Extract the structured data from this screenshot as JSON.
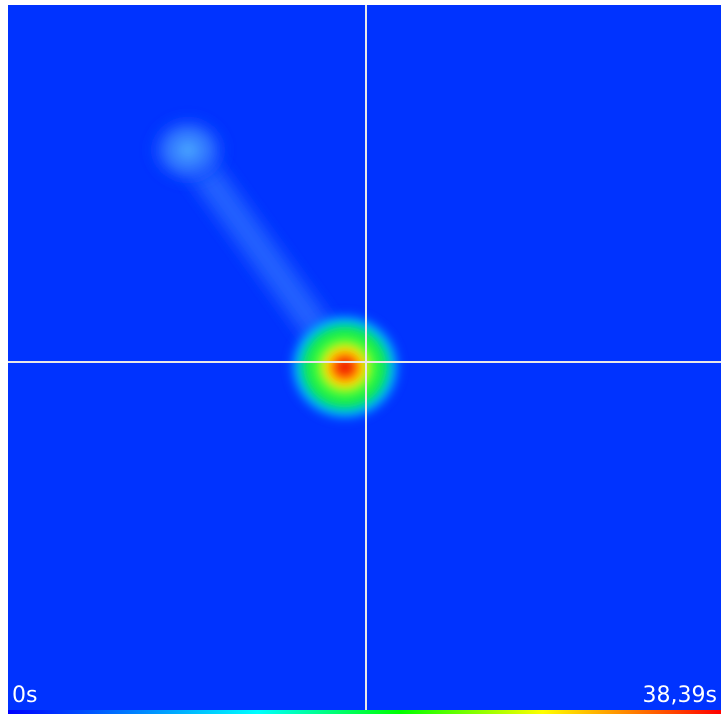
{
  "timeline": {
    "start_label": "0s",
    "end_label": "38,39s"
  }
}
